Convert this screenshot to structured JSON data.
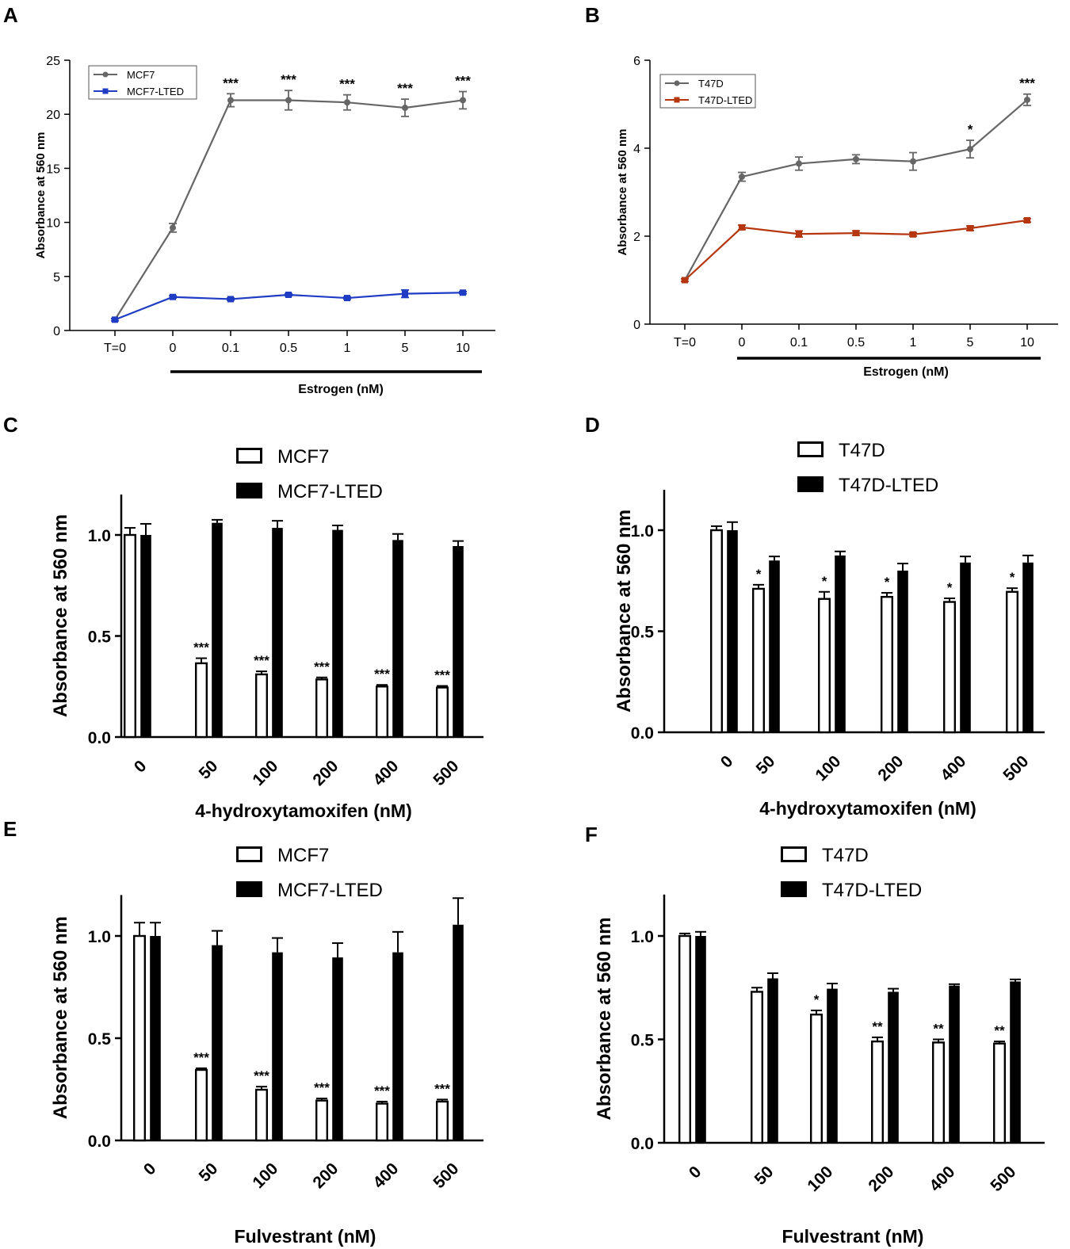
{
  "panels": [
    {
      "id": "A",
      "chart_data": {
        "type": "line",
        "categories": [
          "T=0",
          "0",
          "0.1",
          "0.5",
          "1",
          "5",
          "10"
        ],
        "xlabel": "Estrogen (nM)",
        "ylabel": "Absorbance at 560 nm",
        "ylim": [
          0,
          25
        ],
        "yticks": [
          0,
          5,
          10,
          15,
          20,
          25
        ],
        "series": [
          {
            "name": "MCF7",
            "color": "#666666",
            "values": [
              1.0,
              9.5,
              21.3,
              21.3,
              21.1,
              20.6,
              21.3
            ],
            "errors": [
              0.1,
              0.4,
              0.6,
              0.9,
              0.7,
              0.8,
              0.8
            ]
          },
          {
            "name": "MCF7-LTED",
            "color": "#1f3cc4",
            "values": [
              1.0,
              3.1,
              2.9,
              3.3,
              3.0,
              3.4,
              3.5
            ],
            "errors": [
              0.1,
              0.1,
              0.1,
              0.1,
              0.1,
              0.35,
              0.1
            ]
          }
        ],
        "annotations": [
          {
            "index": 2,
            "text": "***"
          },
          {
            "index": 3,
            "text": "***"
          },
          {
            "index": 4,
            "text": "***"
          },
          {
            "index": 5,
            "text": "***"
          },
          {
            "index": 6,
            "text": "***"
          }
        ],
        "legend": "top-left"
      }
    },
    {
      "id": "B",
      "chart_data": {
        "type": "line",
        "categories": [
          "T=0",
          "0",
          "0.1",
          "0.5",
          "1",
          "5",
          "10"
        ],
        "xlabel": "Estrogen (nM)",
        "ylabel": "Absorbance at 560 nm",
        "ylim": [
          0,
          6
        ],
        "yticks": [
          0,
          2,
          4,
          6
        ],
        "series": [
          {
            "name": "T47D",
            "color": "#666666",
            "values": [
              1.0,
              3.35,
              3.65,
              3.75,
              3.7,
              3.98,
              5.1
            ],
            "errors": [
              0.03,
              0.1,
              0.15,
              0.1,
              0.2,
              0.2,
              0.13
            ]
          },
          {
            "name": "T47D-LTED",
            "color": "#b5360f",
            "values": [
              1.0,
              2.2,
              2.05,
              2.07,
              2.04,
              2.18,
              2.36
            ],
            "errors": [
              0.03,
              0.05,
              0.07,
              0.05,
              0.04,
              0.05,
              0.04
            ]
          }
        ],
        "annotations": [
          {
            "index": 5,
            "text": "*"
          },
          {
            "index": 6,
            "text": "***"
          }
        ],
        "legend": "top-left"
      }
    },
    {
      "id": "C",
      "chart_data": {
        "type": "bar",
        "categories": [
          "0",
          "50",
          "100",
          "200",
          "400",
          "500"
        ],
        "xlabel": "4-hydroxytamoxifen (nM)",
        "ylabel": "Absorbance at 560 nm",
        "ylim": [
          0,
          1.2
        ],
        "yticks": [
          "0.0",
          "0.5",
          "1.0"
        ],
        "series": [
          {
            "name": "MCF7",
            "fill": "open",
            "values": [
              1.0,
              0.365,
              0.31,
              0.285,
              0.25,
              0.245
            ],
            "errors": [
              0.035,
              0.025,
              0.015,
              0.01,
              0.008,
              0.008
            ]
          },
          {
            "name": "MCF7-LTED",
            "fill": "solid",
            "values": [
              1.0,
              1.06,
              1.035,
              1.025,
              0.975,
              0.945
            ],
            "errors": [
              0.055,
              0.015,
              0.035,
              0.022,
              0.03,
              0.025
            ]
          }
        ],
        "annotations": [
          {
            "index": 1,
            "text": "***"
          },
          {
            "index": 2,
            "text": "***"
          },
          {
            "index": 3,
            "text": "***"
          },
          {
            "index": 4,
            "text": "***"
          },
          {
            "index": 5,
            "text": "***"
          }
        ],
        "legend": "top-center"
      }
    },
    {
      "id": "D",
      "chart_data": {
        "type": "bar",
        "categories": [
          "0",
          "50",
          "100",
          "200",
          "400",
          "500"
        ],
        "xlabel": "4-hydroxytamoxifen (nM)",
        "ylabel": "Absorbance at 560 nm",
        "ylim": [
          0,
          1.2
        ],
        "yticks": [
          "0.0",
          "0.5",
          "1.0"
        ],
        "series": [
          {
            "name": "T47D",
            "fill": "open",
            "values": [
              1.0,
              0.71,
              0.66,
              0.67,
              0.645,
              0.695
            ],
            "errors": [
              0.02,
              0.02,
              0.035,
              0.02,
              0.018,
              0.018
            ]
          },
          {
            "name": "T47D-LTED",
            "fill": "solid",
            "values": [
              1.0,
              0.85,
              0.875,
              0.8,
              0.84,
              0.84
            ],
            "errors": [
              0.04,
              0.02,
              0.02,
              0.035,
              0.03,
              0.035
            ]
          }
        ],
        "annotations": [
          {
            "index": 1,
            "text": "*"
          },
          {
            "index": 2,
            "text": "*"
          },
          {
            "index": 3,
            "text": "*"
          },
          {
            "index": 4,
            "text": "*"
          },
          {
            "index": 5,
            "text": "*"
          }
        ],
        "legend": "top-center"
      }
    },
    {
      "id": "E",
      "chart_data": {
        "type": "bar",
        "categories": [
          "0",
          "50",
          "100",
          "200",
          "400",
          "500"
        ],
        "xlabel": "Fulvestrant (nM)",
        "ylabel": "Absorbance at 560 nm",
        "ylim": [
          0,
          1.2
        ],
        "yticks": [
          "0.0",
          "0.5",
          "1.0"
        ],
        "series": [
          {
            "name": "MCF7",
            "fill": "open",
            "values": [
              1.0,
              0.345,
              0.248,
              0.195,
              0.18,
              0.19
            ],
            "errors": [
              0.065,
              0.008,
              0.015,
              0.01,
              0.01,
              0.01
            ]
          },
          {
            "name": "MCF7-LTED",
            "fill": "solid",
            "values": [
              1.0,
              0.955,
              0.92,
              0.895,
              0.92,
              1.055
            ],
            "errors": [
              0.065,
              0.07,
              0.07,
              0.07,
              0.1,
              0.13
            ]
          }
        ],
        "annotations": [
          {
            "index": 1,
            "text": "***"
          },
          {
            "index": 2,
            "text": "***"
          },
          {
            "index": 3,
            "text": "***"
          },
          {
            "index": 4,
            "text": "***"
          },
          {
            "index": 5,
            "text": "***"
          }
        ],
        "legend": "top-center"
      }
    },
    {
      "id": "F",
      "chart_data": {
        "type": "bar",
        "categories": [
          "0",
          "50",
          "100",
          "200",
          "400",
          "500"
        ],
        "xlabel": "Fulvestrant (nM)",
        "ylabel": "Absorbance at 560 nm",
        "ylim": [
          0,
          1.2
        ],
        "yticks": [
          "0.0",
          "0.5",
          "1.0"
        ],
        "series": [
          {
            "name": "T47D",
            "fill": "open",
            "values": [
              1.0,
              0.73,
              0.62,
              0.49,
              0.485,
              0.48
            ],
            "errors": [
              0.012,
              0.02,
              0.02,
              0.02,
              0.015,
              0.01
            ]
          },
          {
            "name": "T47D-LTED",
            "fill": "solid",
            "values": [
              1.0,
              0.795,
              0.745,
              0.73,
              0.76,
              0.78
            ],
            "errors": [
              0.02,
              0.025,
              0.025,
              0.015,
              0.007,
              0.01
            ]
          }
        ],
        "annotations": [
          {
            "index": 2,
            "text": "*"
          },
          {
            "index": 3,
            "text": "**"
          },
          {
            "index": 4,
            "text": "**"
          },
          {
            "index": 5,
            "text": "**"
          }
        ],
        "legend": "top-center"
      }
    }
  ]
}
